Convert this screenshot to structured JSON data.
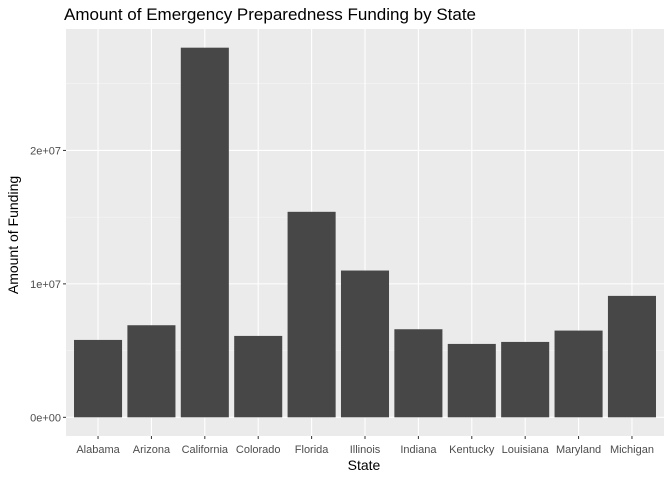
{
  "chart_data": {
    "type": "bar",
    "title": "Amount of Emergency Preparedness Funding by State",
    "xlabel": "State",
    "ylabel": "Amount of Funding",
    "categories": [
      "Alabama",
      "Arizona",
      "California",
      "Colorado",
      "Florida",
      "Illinois",
      "Indiana",
      "Kentucky",
      "Louisiana",
      "Maryland",
      "Michigan"
    ],
    "values": [
      5800000,
      6900000,
      27700000,
      6100000,
      15400000,
      11000000,
      6600000,
      5500000,
      5650000,
      6500000,
      9100000
    ],
    "y_ticks": [
      {
        "value": 0,
        "label": "0e+00"
      },
      {
        "value": 10000000,
        "label": "1e+07"
      },
      {
        "value": 20000000,
        "label": "2e+07"
      }
    ],
    "ylim": [
      -1400000,
      29100000
    ],
    "grid": true,
    "colors": {
      "panel": "#ebebeb",
      "gridline_major": "#ffffff",
      "bar": "#474747",
      "tick_label": "#4d4d4d",
      "tick_mark": "#333333"
    }
  }
}
